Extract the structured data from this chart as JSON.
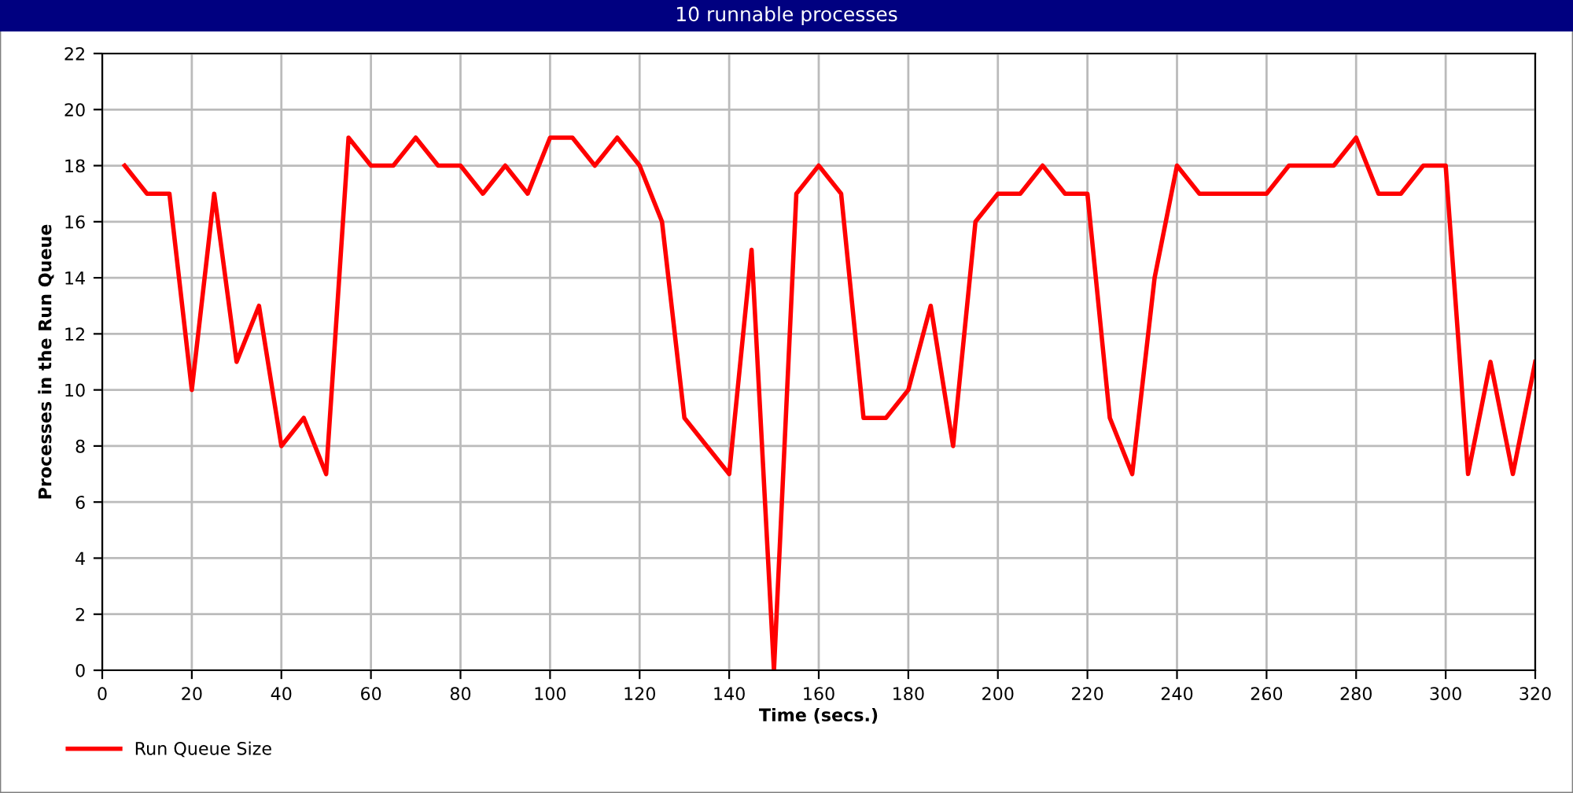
{
  "chart_data": {
    "type": "line",
    "title": "10 runnable processes",
    "xlabel": "Time (secs.)",
    "ylabel": "Processes in the Run Queue",
    "x": [
      5,
      10,
      15,
      20,
      25,
      30,
      35,
      40,
      45,
      50,
      55,
      60,
      65,
      70,
      75,
      80,
      85,
      90,
      95,
      100,
      105,
      110,
      115,
      120,
      125,
      130,
      135,
      140,
      145,
      150,
      155,
      160,
      165,
      170,
      175,
      180,
      185,
      190,
      195,
      200,
      205,
      210,
      215,
      220,
      225,
      230,
      235,
      240,
      245,
      250,
      255,
      260,
      265,
      270,
      275,
      280,
      285,
      290,
      295,
      300,
      305,
      310,
      315,
      320
    ],
    "series": [
      {
        "name": "Run Queue Size",
        "color": "#ff0000",
        "values": [
          18,
          17,
          17,
          10,
          17,
          11,
          13,
          8,
          9,
          7,
          19,
          18,
          18,
          19,
          18,
          18,
          17,
          18,
          17,
          19,
          19,
          18,
          19,
          18,
          16,
          9,
          8,
          7,
          15,
          0,
          17,
          18,
          17,
          9,
          9,
          10,
          13,
          8,
          16,
          17,
          17,
          18,
          17,
          17,
          9,
          7,
          14,
          18,
          17,
          17,
          17,
          17,
          18,
          18,
          18,
          19,
          17,
          17,
          18,
          18,
          7,
          11,
          7,
          11
        ]
      }
    ],
    "xlim": [
      0,
      320
    ],
    "xticks": [
      0,
      20,
      40,
      60,
      80,
      100,
      120,
      140,
      160,
      180,
      200,
      220,
      240,
      260,
      280,
      300,
      320
    ],
    "ylim": [
      0,
      22
    ],
    "yticks": [
      0,
      2,
      4,
      6,
      8,
      10,
      12,
      14,
      16,
      18,
      20,
      22
    ],
    "grid": true,
    "legend": "bottom left",
    "marker": "none",
    "line_style": "solid"
  }
}
